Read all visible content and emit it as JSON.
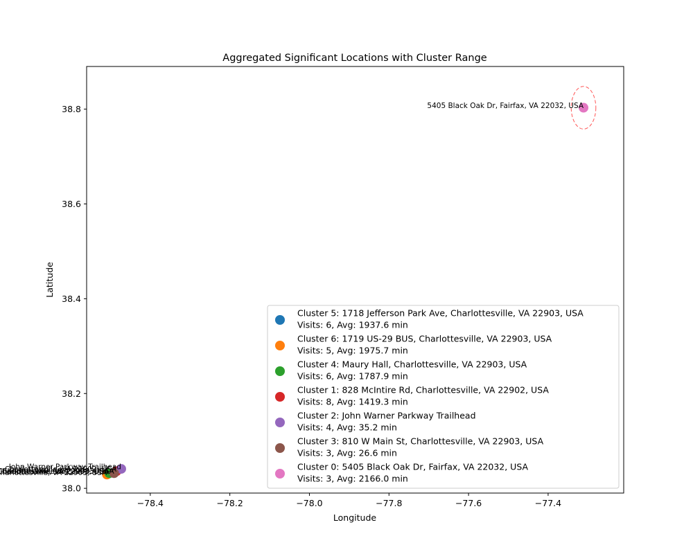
{
  "chart_data": {
    "type": "scatter",
    "title": "Aggregated Significant Locations with Cluster Range",
    "xlabel": "Longitude",
    "ylabel": "Latitude",
    "xlim": [
      -78.56,
      -77.21
    ],
    "ylim": [
      37.99,
      38.89
    ],
    "xticks": [
      -78.4,
      -78.2,
      -78.0,
      -77.8,
      -77.6,
      -77.4
    ],
    "xtick_labels": [
      "−78.4",
      "−78.2",
      "−78.0",
      "−77.8",
      "−77.6",
      "−77.4"
    ],
    "yticks": [
      38.0,
      38.2,
      38.4,
      38.6,
      38.8
    ],
    "ytick_labels": [
      "38.0",
      "38.2",
      "38.4",
      "38.6",
      "38.8"
    ],
    "grid": false,
    "legend_position": "lower-right",
    "range_circle_color": "#ff5555",
    "series": [
      {
        "name": "Cluster 5: 1718 Jefferson Park Ave, Charlottesville, VA 22903, USA",
        "detail": "Visits: 6, Avg: 1937.6 min",
        "color": "#1f77b4",
        "x": -78.505,
        "y": 38.031,
        "annotation": "1718 Jefferson Park Ave, Charlottesville, VA 22903, USA"
      },
      {
        "name": "Cluster 6: 1719 US-29 BUS, Charlottesville, VA 22903, USA",
        "detail": "Visits: 5, Avg: 1975.7 min",
        "color": "#ff7f0e",
        "x": -78.509,
        "y": 38.029,
        "annotation": "1719 US-29 BUS, Charlottesville, VA 22903, USA"
      },
      {
        "name": "Cluster 4: Maury Hall, Charlottesville, VA 22903, USA",
        "detail": "Visits: 6, Avg: 1787.9 min",
        "color": "#2ca02c",
        "x": -78.503,
        "y": 38.032,
        "annotation": "Maury Hall, Charlottesville, VA 22903, USA"
      },
      {
        "name": "Cluster 1: 828 McIntire Rd, Charlottesville, VA 22902, USA",
        "detail": "Visits: 8, Avg: 1419.3 min",
        "color": "#d62728",
        "x": -78.485,
        "y": 38.036,
        "annotation": "828 McIntire Rd, Charlottesville, VA 22902, USA"
      },
      {
        "name": "Cluster 2: John Warner Parkway Trailhead",
        "detail": "Visits: 4, Avg: 35.2 min",
        "color": "#9467bd",
        "x": -78.473,
        "y": 38.041,
        "annotation": "John Warner Parkway Trailhead"
      },
      {
        "name": "Cluster 3: 810 W Main St, Charlottesville, VA 22903, USA",
        "detail": "Visits: 3, Avg: 26.6 min",
        "color": "#8c564b",
        "x": -78.491,
        "y": 38.032,
        "annotation": "810 W Main St, Charlottesville, VA 22903, USA"
      },
      {
        "name": "Cluster 0: 5405 Black Oak Dr, Fairfax, VA 22032, USA",
        "detail": "Visits: 3, Avg: 2166.0 min",
        "color": "#e377c2",
        "x": -77.311,
        "y": 38.803,
        "annotation": "5405 Black Oak Dr, Fairfax, VA 22032, USA",
        "range_rx": 0.031,
        "range_ry": 0.045
      }
    ]
  }
}
